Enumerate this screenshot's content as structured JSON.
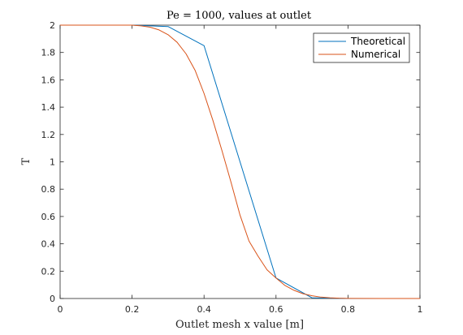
{
  "chart_data": {
    "type": "line",
    "title": "Pe = 1000, values at outlet",
    "xlabel": "Outlet mesh x value [m]",
    "ylabel": "T",
    "xlim": [
      0,
      1
    ],
    "ylim": [
      0,
      2
    ],
    "xticks": [
      0,
      0.2,
      0.4,
      0.6,
      0.8,
      1
    ],
    "xtick_labels": [
      "0",
      "0.2",
      "0.4",
      "0.6",
      "0.8",
      "1"
    ],
    "yticks": [
      0,
      0.2,
      0.4,
      0.6,
      0.8,
      1,
      1.2,
      1.4,
      1.6,
      1.8,
      2
    ],
    "ytick_labels": [
      "0",
      "0.2",
      "0.4",
      "0.6",
      "0.8",
      "1",
      "1.2",
      "1.4",
      "1.6",
      "1.8",
      "2"
    ],
    "grid": false,
    "legend_position": "top-right",
    "series": [
      {
        "name": "Theoretical",
        "color": "#0072BD",
        "x": [
          0,
          0.1,
          0.2,
          0.3,
          0.4,
          0.5,
          0.6,
          0.7,
          0.8,
          0.9,
          1
        ],
        "y": [
          2,
          2,
          2,
          1.99,
          1.85,
          1.0,
          0.15,
          0.005,
          0,
          0,
          0
        ]
      },
      {
        "name": "Numerical",
        "color": "#D95319",
        "x": [
          0,
          0.1,
          0.2,
          0.225,
          0.25,
          0.275,
          0.3,
          0.325,
          0.35,
          0.375,
          0.4,
          0.425,
          0.45,
          0.475,
          0.5,
          0.525,
          0.55,
          0.575,
          0.6,
          0.625,
          0.65,
          0.675,
          0.7,
          0.725,
          0.75,
          0.775,
          0.8,
          0.9,
          1
        ],
        "y": [
          2,
          2,
          2,
          1.995,
          1.985,
          1.965,
          1.93,
          1.875,
          1.79,
          1.67,
          1.5,
          1.3,
          1.08,
          0.85,
          0.61,
          0.42,
          0.31,
          0.21,
          0.15,
          0.095,
          0.06,
          0.035,
          0.02,
          0.01,
          0.005,
          0.002,
          0.001,
          0,
          0
        ]
      }
    ]
  }
}
